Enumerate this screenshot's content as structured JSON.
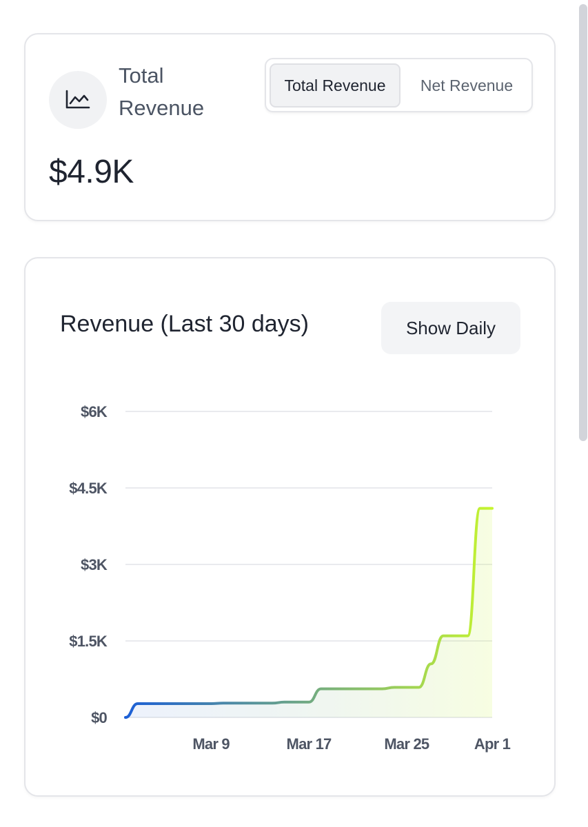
{
  "summary": {
    "title": "Total Revenue",
    "value": "$4.9K",
    "icon": "line-chart-icon",
    "toggle": {
      "options": [
        "Total Revenue",
        "Net Revenue"
      ],
      "selected": "Total Revenue"
    }
  },
  "chart_section": {
    "title": "Revenue (Last 30 days)",
    "show_daily_label": "Show Daily"
  },
  "colors": {
    "line_start": "#1c5fd6",
    "line_end": "#c6f52e",
    "grid": "#e2e4e8",
    "tick_text": "#4e5564"
  },
  "chart_data": {
    "type": "area",
    "title": "Revenue (Last 30 days)",
    "xlabel": "",
    "ylabel": "",
    "x_tick_labels": [
      "Mar 9",
      "Mar 17",
      "Mar 25",
      "Apr 1"
    ],
    "y_tick_labels": [
      "$0",
      "$1.5K",
      "$3K",
      "$4.5K",
      "$6K"
    ],
    "y_ticks": [
      0,
      1500,
      3000,
      4500,
      6000
    ],
    "ylim": [
      0,
      6000
    ],
    "grid": true,
    "series": [
      {
        "x": [
          "Mar 2",
          "Mar 3",
          "Mar 4",
          "Mar 5",
          "Mar 6",
          "Mar 7",
          "Mar 8",
          "Mar 9",
          "Mar 10",
          "Mar 11",
          "Mar 12",
          "Mar 13",
          "Mar 14",
          "Mar 15",
          "Mar 16",
          "Mar 17",
          "Mar 18",
          "Mar 19",
          "Mar 20",
          "Mar 21",
          "Mar 22",
          "Mar 23",
          "Mar 24",
          "Mar 25",
          "Mar 26",
          "Mar 27",
          "Mar 28",
          "Mar 29",
          "Mar 30",
          "Mar 31",
          "Apr 1"
        ],
        "values": [
          0,
          270,
          270,
          270,
          270,
          270,
          270,
          270,
          280,
          280,
          280,
          280,
          280,
          300,
          300,
          300,
          560,
          560,
          560,
          560,
          560,
          560,
          590,
          590,
          590,
          1050,
          1600,
          1600,
          1600,
          4100,
          4100
        ]
      }
    ]
  }
}
